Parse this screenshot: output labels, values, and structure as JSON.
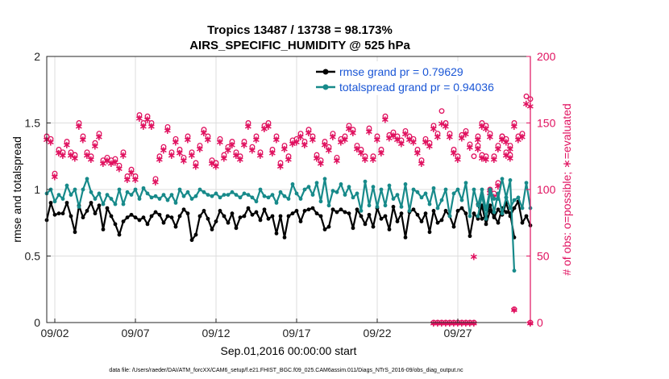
{
  "colors": {
    "rmse": "#000000",
    "spread": "#178a8a",
    "obs": "#e0115f",
    "legend_text": "#1a56d6",
    "grid": "#dddddd"
  },
  "chart_data": {
    "type": "line",
    "title_line1": "Tropics 13487 / 13738 = 98.173%",
    "title_line2": "AIRS_SPECIFIC_HUMIDITY @ 525 hPa",
    "xlabel": "Sep.01,2016 00:00:00 start",
    "ylabel_left": "rmse and totalspread",
    "ylabel_right": "# of obs: o=possible; ∗=evaluated",
    "footer": "data file: /Users/raeder/DAI/ATM_forcXX/CAM6_setup/f.e21.FHIST_BGC.f09_025.CAM6assim.011/Diags_NTrS_2016-09/obs_diag_output.nc",
    "x_ticks": [
      "09/02",
      "09/07",
      "09/12",
      "09/17",
      "09/22",
      "09/27"
    ],
    "x_tick_values": [
      2,
      7,
      12,
      17,
      22,
      27
    ],
    "xlim": [
      1.5,
      31.5
    ],
    "ylim_left": [
      0,
      2
    ],
    "ylim_right": [
      0,
      200
    ],
    "yticks_left": [
      "0",
      "0.5",
      "1",
      "1.5",
      "2"
    ],
    "yticks_right": [
      "0",
      "50",
      "100",
      "150",
      "200"
    ],
    "legend": [
      {
        "label": "rmse grand pr = 0.79629"
      },
      {
        "label": "totalspread grand pr = 0.94036"
      }
    ],
    "series": [
      {
        "name": "rmse",
        "segments": [
          {
            "x_start": 1.5,
            "step": 0.25,
            "values": [
              0.77,
              0.9,
              0.81,
              0.82,
              0.82,
              0.9,
              0.8,
              0.68,
              0.88,
              0.79,
              0.84,
              0.9,
              0.82,
              0.88,
              0.7,
              0.86,
              0.8,
              0.74,
              0.66,
              0.76,
              0.79,
              0.81,
              0.79,
              0.77,
              0.79,
              0.74,
              0.8,
              0.83,
              0.81,
              0.75,
              0.8,
              0.79,
              0.72,
              0.8,
              0.85,
              0.82,
              0.62,
              0.66,
              0.8,
              0.84,
              0.78,
              0.7,
              0.76,
              0.84,
              0.8,
              0.75,
              0.82,
              0.71,
              0.79,
              0.8,
              0.86,
              0.81,
              0.83,
              0.77,
              0.85,
              0.78,
              0.8,
              0.67,
              0.8,
              0.64,
              0.8,
              0.82,
              0.84,
              0.76,
              0.84,
              0.85,
              0.86,
              0.82,
              0.8,
              0.7,
              0.72,
              0.85,
              0.83,
              0.85,
              0.83,
              0.82,
              0.71,
              0.85,
              0.8,
              0.74,
              0.81,
              0.72,
              0.86,
              0.78,
              0.8,
              0.7,
              0.87,
              0.76,
              0.82,
              0.64,
              0.83,
              0.85,
              0.81,
              0.76,
              0.82,
              0.68,
              0.84,
              0.75,
              0.77,
              0.84,
              0.8,
              0.72,
              0.84,
              0.86,
              0.82,
              0.65,
              0.82,
              0.78,
              0.88,
              0.74,
              0.84,
              0.8,
              0.75,
              0.86,
              0.83,
              0.82,
              0.64
            ]
          },
          {
            "x_start": 28.25,
            "step": 0.25,
            "values": [
              0.89,
              0.78,
              0.8,
              0.88,
              0.79,
              0.85,
              0.81,
              0.9,
              0.8,
              0.86,
              0.91,
              0.75,
              0.8,
              0.73
            ]
          }
        ]
      },
      {
        "name": "totalspread",
        "segments": [
          {
            "x_start": 1.5,
            "step": 0.25,
            "values": [
              0.97,
              1.0,
              0.91,
              0.96,
              0.93,
              1.03,
              0.96,
              1.0,
              0.87,
              1.0,
              1.08,
              0.98,
              0.93,
              0.97,
              0.89,
              0.96,
              0.93,
              0.89,
              1.0,
              0.89,
              0.98,
              0.96,
              1.0,
              0.93,
              1.01,
              0.97,
              0.94,
              0.95,
              0.93,
              0.96,
              0.92,
              0.96,
              0.9,
              1.0,
              0.95,
              0.98,
              0.93,
              0.95,
              1.0,
              0.98,
              0.96,
              0.95,
              0.97,
              0.94,
              0.96,
              0.96,
              0.98,
              0.96,
              0.94,
              0.97,
              0.96,
              0.94,
              0.91,
              1.0,
              0.95,
              0.94,
              0.96,
              0.9,
              0.98,
              0.95,
              0.93,
              1.04,
              0.97,
              0.93,
              1.0,
              1.02,
              0.96,
              1.05,
              0.91,
              1.08,
              0.88,
              0.99,
              0.98,
              1.04,
              0.96,
              1.02,
              0.94,
              0.97,
              0.84,
              1.06,
              0.88,
              1.02,
              0.87,
              1.0,
              0.88,
              1.03,
              0.93,
              0.96,
              0.87,
              1.04,
              0.84,
              1.0,
              0.98,
              0.94,
              0.97,
              0.89,
              1.01,
              0.86,
              0.92,
              1.0,
              0.8,
              0.97,
              1.0,
              0.92,
              1.05,
              0.8,
              1.0,
              0.88,
              1.0,
              0.85,
              1.0,
              0.93,
              0.93,
              1.08,
              0.94,
              1.07,
              0.39
            ]
          },
          {
            "x_start": 28.25,
            "step": 0.25,
            "values": [
              0.8,
              0.96,
              0.78,
              0.99,
              0.83,
              0.97,
              0.82,
              0.94,
              0.86,
              0.92,
              0.94,
              0.86,
              1.05,
              0.86
            ]
          }
        ]
      }
    ],
    "obs_possible": [
      {
        "x_start": 1.5,
        "step": 0.25,
        "values": [
          140,
          138,
          112,
          130,
          128,
          136,
          128,
          126,
          150,
          140,
          128,
          125,
          135,
          142,
          122,
          124,
          122,
          123,
          118,
          128,
          110,
          115,
          110,
          156,
          150,
          155,
          150,
          108,
          125,
          132,
          147,
          128,
          138,
          130,
          124,
          140,
          128,
          120,
          133,
          145,
          140,
          122,
          120,
          138,
          126,
          132,
          136,
          128,
          125,
          136,
          150,
          132,
          140,
          128,
          148,
          150,
          130,
          140,
          120,
          133,
          125,
          137,
          138,
          142,
          136,
          145,
          140,
          126,
          122,
          136,
          132,
          142,
          124,
          138,
          140,
          148,
          145,
          133,
          130,
          125,
          146,
          125,
          140,
          130,
          155,
          141,
          143,
          140,
          137,
          144,
          140,
          138,
          130,
          122,
          138,
          135,
          148,
          142,
          159,
          150,
          142,
          130,
          125,
          141,
          144,
          134,
          125,
          140,
          126,
          125,
          100,
          97,
          105,
          140,
          138,
          133,
          10
        ]
      },
      {
        "x_start": 25.5,
        "step": 0.25,
        "values": [
          0,
          0,
          0,
          0,
          0,
          0,
          0,
          0,
          0,
          0,
          0
        ]
      },
      {
        "x_start": 28.25,
        "step": 0.25,
        "values": [
          133,
          150,
          148,
          142,
          125,
          133,
          140,
          128,
          126,
          150,
          140,
          142,
          170,
          168
        ]
      },
      {
        "x_start": 31.5,
        "step": 0.25,
        "values": [
          0
        ]
      }
    ],
    "obs_evaluated": [
      {
        "x_start": 1.5,
        "step": 0.25,
        "values": [
          138,
          136,
          110,
          128,
          126,
          134,
          126,
          124,
          148,
          138,
          126,
          123,
          133,
          140,
          120,
          122,
          120,
          121,
          116,
          126,
          108,
          113,
          108,
          154,
          148,
          153,
          148,
          106,
          123,
          130,
          145,
          126,
          136,
          128,
          122,
          138,
          126,
          118,
          131,
          143,
          138,
          120,
          118,
          136,
          124,
          130,
          134,
          126,
          123,
          134,
          148,
          130,
          138,
          126,
          146,
          148,
          128,
          138,
          118,
          131,
          123,
          135,
          136,
          140,
          134,
          143,
          138,
          124,
          120,
          134,
          130,
          140,
          122,
          136,
          138,
          146,
          143,
          131,
          128,
          123,
          144,
          123,
          138,
          128,
          153,
          139,
          141,
          138,
          135,
          142,
          138,
          136,
          128,
          120,
          136,
          133,
          146,
          140,
          150,
          148,
          140,
          128,
          123,
          139,
          142,
          132,
          50,
          138,
          124,
          123,
          98,
          95,
          103,
          138,
          136,
          131,
          10
        ]
      },
      {
        "x_start": 25.5,
        "step": 0.25,
        "values": [
          0,
          0,
          0,
          0,
          0,
          0,
          0,
          0,
          0,
          0,
          0
        ]
      },
      {
        "x_start": 28.25,
        "step": 0.25,
        "values": [
          131,
          148,
          146,
          140,
          123,
          131,
          138,
          126,
          124,
          148,
          138,
          140,
          165,
          163
        ]
      },
      {
        "x_start": 31.5,
        "step": 0.25,
        "values": [
          0
        ]
      }
    ]
  }
}
